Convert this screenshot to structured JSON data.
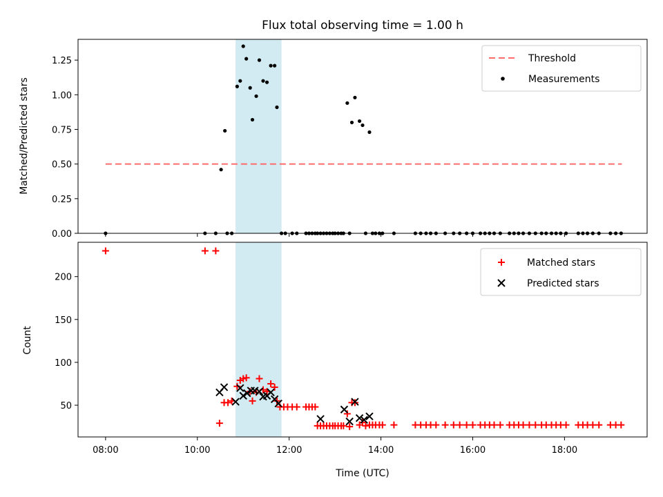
{
  "chart_data": [
    {
      "type": "scatter",
      "title": "Flux total observing time = 1.00 h",
      "xlabel": "",
      "ylabel": "Matched/Predicted stars",
      "ylim": [
        0,
        1.4
      ],
      "yticks": [
        "0.00",
        "0.25",
        "0.50",
        "0.75",
        "1.00",
        "1.25"
      ],
      "highlight_span": {
        "start": "10:50",
        "end": "11:50",
        "color": "#add8e6"
      },
      "legend_position": "top-right",
      "threshold": {
        "label": "Threshold",
        "value": 0.5,
        "x_start": "08:00",
        "x_end": "19:15",
        "color": "#ff6b6b"
      },
      "series": [
        {
          "name": "Measurements",
          "color": "#000000",
          "points": [
            [
              "08:00",
              0
            ],
            [
              "10:10",
              0
            ],
            [
              "10:24",
              0
            ],
            [
              "10:31",
              0.46
            ],
            [
              "10:36",
              0.74
            ],
            [
              "10:39",
              0
            ],
            [
              "10:45",
              0
            ],
            [
              "10:52",
              1.06
            ],
            [
              "10:56",
              1.1
            ],
            [
              "11:00",
              1.35
            ],
            [
              "11:04",
              1.26
            ],
            [
              "11:09",
              1.05
            ],
            [
              "11:12",
              0.82
            ],
            [
              "11:17",
              0.99
            ],
            [
              "11:21",
              1.25
            ],
            [
              "11:26",
              1.1
            ],
            [
              "11:31",
              1.09
            ],
            [
              "11:36",
              1.21
            ],
            [
              "11:41",
              1.21
            ],
            [
              "11:44",
              0.91
            ],
            [
              "11:50",
              0
            ],
            [
              "11:55",
              0
            ],
            [
              "12:04",
              0
            ],
            [
              "12:10",
              0
            ],
            [
              "12:22",
              0
            ],
            [
              "12:26",
              0
            ],
            [
              "12:30",
              0
            ],
            [
              "12:34",
              0
            ],
            [
              "12:37",
              0
            ],
            [
              "12:41",
              0
            ],
            [
              "12:45",
              0
            ],
            [
              "12:49",
              0
            ],
            [
              "12:53",
              0
            ],
            [
              "12:57",
              0
            ],
            [
              "13:00",
              0
            ],
            [
              "13:04",
              0
            ],
            [
              "13:08",
              0
            ],
            [
              "13:11",
              0
            ],
            [
              "13:16",
              0.94
            ],
            [
              "13:19",
              0
            ],
            [
              "13:22",
              0.8
            ],
            [
              "13:26",
              0.98
            ],
            [
              "13:32",
              0.81
            ],
            [
              "13:36",
              0.78
            ],
            [
              "13:40",
              0
            ],
            [
              "13:45",
              0.73
            ],
            [
              "13:49",
              0
            ],
            [
              "13:53",
              0
            ],
            [
              "13:58",
              0
            ],
            [
              "14:02",
              0
            ],
            [
              "14:17",
              0
            ],
            [
              "14:45",
              0
            ],
            [
              "14:52",
              0
            ],
            [
              "14:59",
              0
            ],
            [
              "15:05",
              0
            ],
            [
              "15:12",
              0
            ],
            [
              "15:24",
              0
            ],
            [
              "15:35",
              0
            ],
            [
              "15:43",
              0
            ],
            [
              "15:52",
              0
            ],
            [
              "16:00",
              0
            ],
            [
              "16:10",
              0
            ],
            [
              "16:16",
              0
            ],
            [
              "16:22",
              0
            ],
            [
              "16:28",
              0
            ],
            [
              "16:36",
              0
            ],
            [
              "16:48",
              0
            ],
            [
              "16:54",
              0
            ],
            [
              "17:00",
              0
            ],
            [
              "17:06",
              0
            ],
            [
              "17:14",
              0
            ],
            [
              "17:22",
              0
            ],
            [
              "17:30",
              0
            ],
            [
              "17:36",
              0
            ],
            [
              "17:43",
              0
            ],
            [
              "17:49",
              0
            ],
            [
              "17:55",
              0
            ],
            [
              "18:02",
              0
            ],
            [
              "18:18",
              0
            ],
            [
              "18:24",
              0
            ],
            [
              "18:30",
              0
            ],
            [
              "18:37",
              0
            ],
            [
              "18:45",
              0
            ],
            [
              "19:00",
              0
            ],
            [
              "19:07",
              0
            ],
            [
              "19:14",
              0
            ]
          ]
        }
      ]
    },
    {
      "type": "scatter",
      "title": "",
      "xlabel": "Time (UTC)",
      "ylabel": "Count",
      "ylim": [
        13,
        240
      ],
      "xlim": [
        "07:24",
        "19:48"
      ],
      "yticks": [
        "50",
        "100",
        "150",
        "200"
      ],
      "xticks": [
        "08:00",
        "10:00",
        "12:00",
        "14:00",
        "16:00",
        "18:00"
      ],
      "highlight_span": {
        "start": "10:50",
        "end": "11:50",
        "color": "#add8e6"
      },
      "legend_position": "top-right",
      "series": [
        {
          "name": "Matched stars",
          "marker": "plus",
          "color": "#ff0000",
          "points": [
            [
              "08:00",
              230
            ],
            [
              "10:10",
              230
            ],
            [
              "10:24",
              230
            ],
            [
              "10:29",
              29
            ],
            [
              "10:35",
              53
            ],
            [
              "10:40",
              53
            ],
            [
              "10:45",
              55
            ],
            [
              "10:52",
              72
            ],
            [
              "10:56",
              79
            ],
            [
              "11:00",
              81
            ],
            [
              "11:04",
              82
            ],
            [
              "11:09",
              66
            ],
            [
              "11:12",
              55
            ],
            [
              "11:17",
              65
            ],
            [
              "11:21",
              81
            ],
            [
              "11:26",
              68
            ],
            [
              "11:31",
              66
            ],
            [
              "11:36",
              75
            ],
            [
              "11:41",
              71
            ],
            [
              "11:44",
              55
            ],
            [
              "11:48",
              48
            ],
            [
              "11:53",
              48
            ],
            [
              "11:58",
              48
            ],
            [
              "12:04",
              48
            ],
            [
              "12:10",
              48
            ],
            [
              "12:22",
              48
            ],
            [
              "12:26",
              48
            ],
            [
              "12:30",
              48
            ],
            [
              "12:34",
              48
            ],
            [
              "12:37",
              26
            ],
            [
              "12:41",
              26
            ],
            [
              "12:45",
              26
            ],
            [
              "12:49",
              26
            ],
            [
              "12:53",
              26
            ],
            [
              "12:57",
              26
            ],
            [
              "13:00",
              26
            ],
            [
              "13:04",
              26
            ],
            [
              "13:08",
              26
            ],
            [
              "13:11",
              26
            ],
            [
              "13:16",
              40
            ],
            [
              "13:19",
              25
            ],
            [
              "13:22",
              53
            ],
            [
              "13:26",
              53
            ],
            [
              "13:32",
              27
            ],
            [
              "13:36",
              30
            ],
            [
              "13:40",
              26
            ],
            [
              "13:45",
              27
            ],
            [
              "13:49",
              27
            ],
            [
              "13:53",
              27
            ],
            [
              "13:58",
              27
            ],
            [
              "14:02",
              27
            ],
            [
              "14:17",
              27
            ],
            [
              "14:45",
              27
            ],
            [
              "14:52",
              27
            ],
            [
              "14:59",
              27
            ],
            [
              "15:05",
              27
            ],
            [
              "15:12",
              27
            ],
            [
              "15:24",
              27
            ],
            [
              "15:35",
              27
            ],
            [
              "15:43",
              27
            ],
            [
              "15:52",
              27
            ],
            [
              "16:00",
              27
            ],
            [
              "16:10",
              27
            ],
            [
              "16:16",
              27
            ],
            [
              "16:22",
              27
            ],
            [
              "16:28",
              27
            ],
            [
              "16:36",
              27
            ],
            [
              "16:48",
              27
            ],
            [
              "16:54",
              27
            ],
            [
              "17:00",
              27
            ],
            [
              "17:06",
              27
            ],
            [
              "17:14",
              27
            ],
            [
              "17:22",
              27
            ],
            [
              "17:30",
              27
            ],
            [
              "17:36",
              27
            ],
            [
              "17:43",
              27
            ],
            [
              "17:49",
              27
            ],
            [
              "17:55",
              27
            ],
            [
              "18:02",
              27
            ],
            [
              "18:18",
              27
            ],
            [
              "18:24",
              27
            ],
            [
              "18:30",
              27
            ],
            [
              "18:37",
              27
            ],
            [
              "18:45",
              27
            ],
            [
              "19:00",
              27
            ],
            [
              "19:07",
              27
            ],
            [
              "19:14",
              27
            ]
          ]
        },
        {
          "name": "Predicted stars",
          "marker": "x",
          "color": "#000000",
          "points": [
            [
              "10:29",
              65
            ],
            [
              "10:35",
              71
            ],
            [
              "10:50",
              54
            ],
            [
              "10:56",
              70
            ],
            [
              "11:00",
              61
            ],
            [
              "11:05",
              64
            ],
            [
              "11:10",
              67
            ],
            [
              "11:15",
              67
            ],
            [
              "11:21",
              66
            ],
            [
              "11:26",
              60
            ],
            [
              "11:31",
              61
            ],
            [
              "11:36",
              65
            ],
            [
              "11:41",
              57
            ],
            [
              "11:46",
              52
            ],
            [
              "12:41",
              34
            ],
            [
              "13:12",
              45
            ],
            [
              "13:19",
              31
            ],
            [
              "13:26",
              54
            ],
            [
              "13:32",
              35
            ],
            [
              "13:38",
              33
            ],
            [
              "13:45",
              37
            ]
          ]
        }
      ]
    }
  ]
}
